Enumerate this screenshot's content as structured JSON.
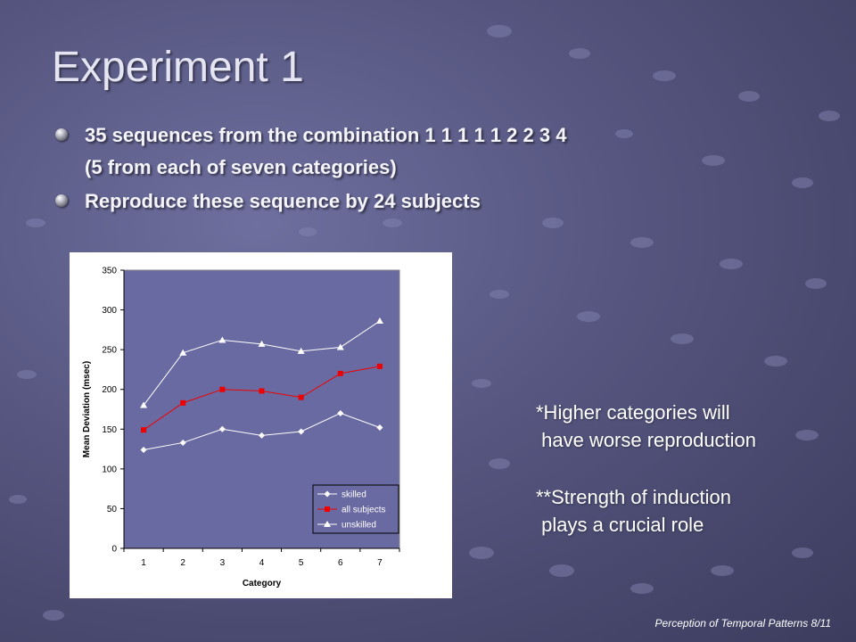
{
  "slide": {
    "title": "Experiment 1",
    "bullets": [
      {
        "lines": [
          "35 sequences from the combination 1 1 1 1 1 2 2 3 4",
          "(5 from each of seven categories)"
        ]
      },
      {
        "lines": [
          "Reproduce these sequence by 24 subjects"
        ]
      }
    ],
    "notes": [
      {
        "lines": [
          "*Higher categories will",
          " have worse reproduction"
        ]
      },
      {
        "lines": [
          "**Strength of induction",
          " plays a crucial role"
        ]
      }
    ],
    "footer": "Perception of Temporal Patterns  8/11"
  },
  "colors": {
    "plot_bg": "#6a6aa2",
    "frame_bg": "#ffffff",
    "series_white": "#ffffff",
    "series_red": "#ee0000",
    "legend_bg": "#6a6aa2"
  },
  "chart_data": {
    "type": "line",
    "x": [
      1,
      2,
      3,
      4,
      5,
      6,
      7
    ],
    "xlabel": "Category",
    "ylabel": "Mean Deviation (msec)",
    "ylim": [
      0,
      350
    ],
    "yticks": [
      0,
      50,
      100,
      150,
      200,
      250,
      300,
      350
    ],
    "grid": false,
    "legend": "bottom-right",
    "series": [
      {
        "name": "skilled",
        "marker": "diamond",
        "color": "#ffffff",
        "values": [
          124,
          133,
          150,
          142,
          147,
          170,
          152
        ]
      },
      {
        "name": "all subjects",
        "marker": "square",
        "color": "#ee0000",
        "values": [
          149,
          183,
          200,
          198,
          190,
          220,
          229
        ]
      },
      {
        "name": "unskilled",
        "marker": "triangle",
        "color": "#ffffff",
        "values": [
          180,
          246,
          262,
          257,
          248,
          253,
          286
        ]
      }
    ]
  }
}
